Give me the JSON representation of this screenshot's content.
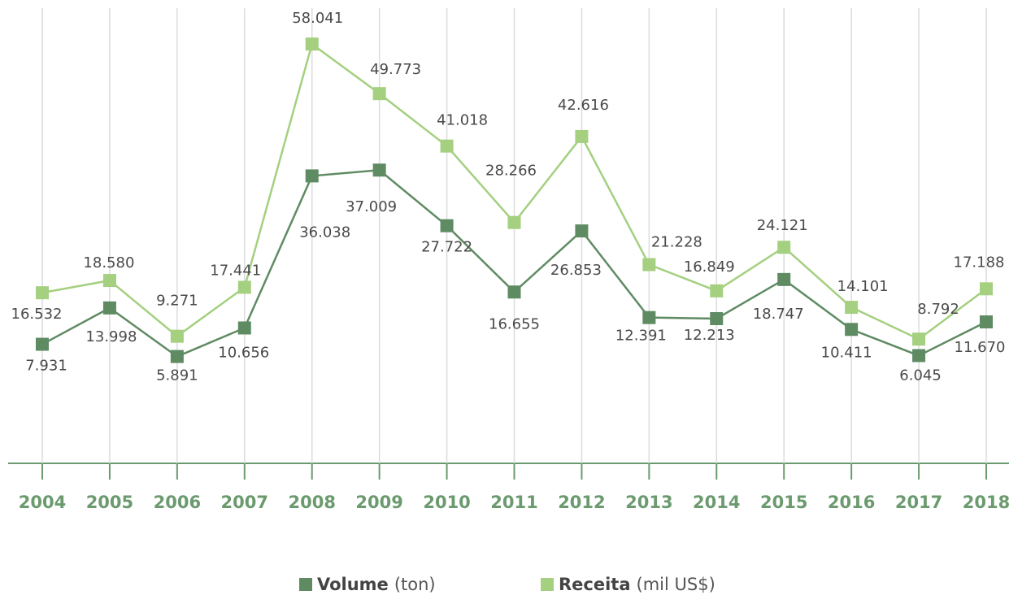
{
  "chart_data": {
    "type": "line",
    "categories": [
      "2004",
      "2005",
      "2006",
      "2007",
      "2008",
      "2009",
      "2010",
      "2011",
      "2012",
      "2013",
      "2014",
      "2015",
      "2016",
      "2017",
      "2018"
    ],
    "series": [
      {
        "name": "Volume",
        "unit": "(ton)",
        "color": "#5f8b63",
        "values": [
          7931,
          13998,
          5891,
          10656,
          36038,
          37009,
          27722,
          16655,
          26853,
          12391,
          12213,
          18747,
          10411,
          6045,
          11670
        ],
        "value_labels": [
          "7.931",
          "13.998",
          "5.891",
          "10.656",
          "36.038",
          "37.009",
          "27.722",
          "16.655",
          "26.853",
          "12.391",
          "12.213",
          "18.747",
          "10.411",
          "6.045",
          "11.670"
        ]
      },
      {
        "name": "Receita",
        "unit": "(mil US$)",
        "color": "#a4d080",
        "values": [
          16532,
          18580,
          9271,
          17441,
          58041,
          49773,
          41018,
          28266,
          42616,
          21228,
          16849,
          24121,
          14101,
          8792,
          17188
        ],
        "value_labels": [
          "16.532",
          "18.580",
          "9.271",
          "17.441",
          "58.041",
          "49.773",
          "41.018",
          "28.266",
          "42.616",
          "21.228",
          "16.849",
          "24.121",
          "14.101",
          "8.792",
          "17.188"
        ]
      }
    ],
    "grid": true,
    "legend": "bottom"
  }
}
